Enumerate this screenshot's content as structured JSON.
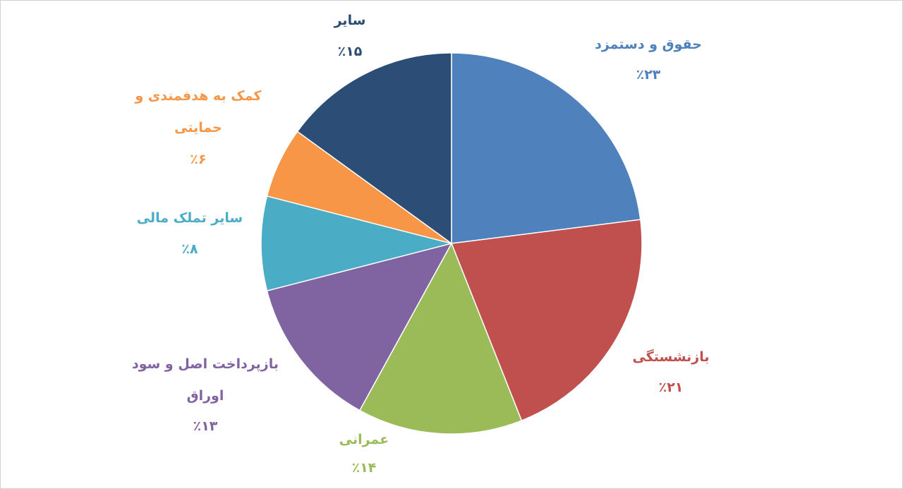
{
  "chart_data": {
    "type": "pie",
    "categories": [
      "حقوق و دستمزد",
      "بازنشستگی",
      "عمرانی",
      "بازپرداخت اصل و سود اوراق",
      "سایر تملک مالی",
      "کمک به هدفمندی و حمایتی",
      "سایر"
    ],
    "values": [
      23,
      21,
      14,
      13,
      8,
      6,
      15
    ],
    "value_labels": [
      "٪۲۳",
      "٪۲۱",
      "٪۱۴",
      "٪۱۳",
      "٪۸",
      "٪۶",
      "٪۱۵"
    ],
    "colors": [
      "#4f81bd",
      "#c0504d",
      "#9bbb59",
      "#8064a2",
      "#4bacc6",
      "#f79646",
      "#2c4d75"
    ]
  }
}
